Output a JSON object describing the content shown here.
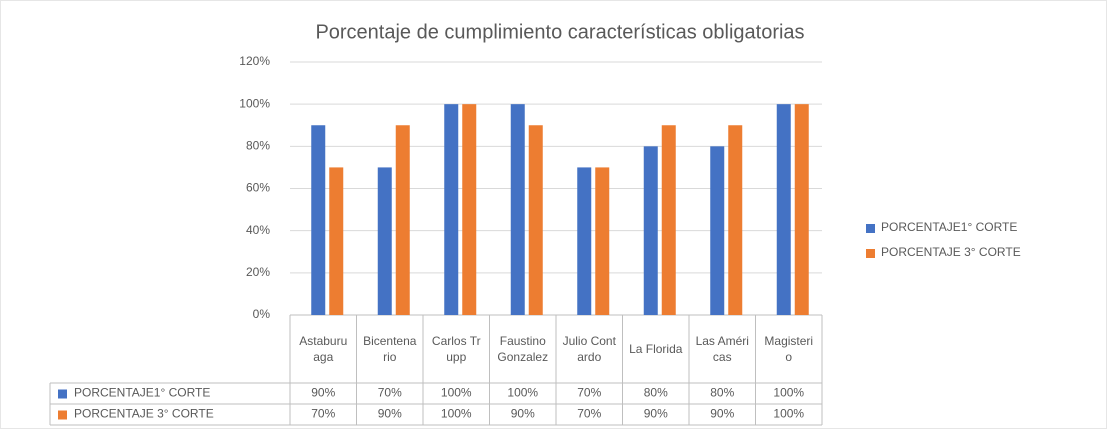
{
  "chart_data": {
    "type": "bar",
    "title": "Porcentaje de cumplimiento características obligatorias",
    "categories": [
      "Astaburuaga",
      "Bicentenario",
      "Carlos Trupp",
      "Faustino Gonzalez",
      "Julio Contardo",
      "La Florida",
      "Las Américas",
      "Magisterio"
    ],
    "series": [
      {
        "name": "PORCENTAJE1° CORTE",
        "color": "#4472c4",
        "values": [
          90,
          70,
          100,
          100,
          70,
          80,
          80,
          100
        ],
        "value_labels": [
          "90%",
          "70%",
          "100%",
          "100%",
          "70%",
          "80%",
          "80%",
          "100%"
        ]
      },
      {
        "name": "PORCENTAJE 3° CORTE",
        "color": "#ed7d31",
        "values": [
          70,
          90,
          100,
          90,
          70,
          90,
          90,
          100
        ],
        "value_labels": [
          "70%",
          "90%",
          "100%",
          "90%",
          "70%",
          "90%",
          "90%",
          "100%"
        ]
      }
    ],
    "ylim": [
      0,
      120
    ],
    "yticks": [
      {
        "value": 0,
        "label": "0%"
      },
      {
        "value": 20,
        "label": "20%"
      },
      {
        "value": 40,
        "label": "40%"
      },
      {
        "value": 60,
        "label": "60%"
      },
      {
        "value": 80,
        "label": "80%"
      },
      {
        "value": 100,
        "label": "100%"
      },
      {
        "value": 120,
        "label": "120%"
      }
    ],
    "grid": true,
    "legend": "right"
  }
}
